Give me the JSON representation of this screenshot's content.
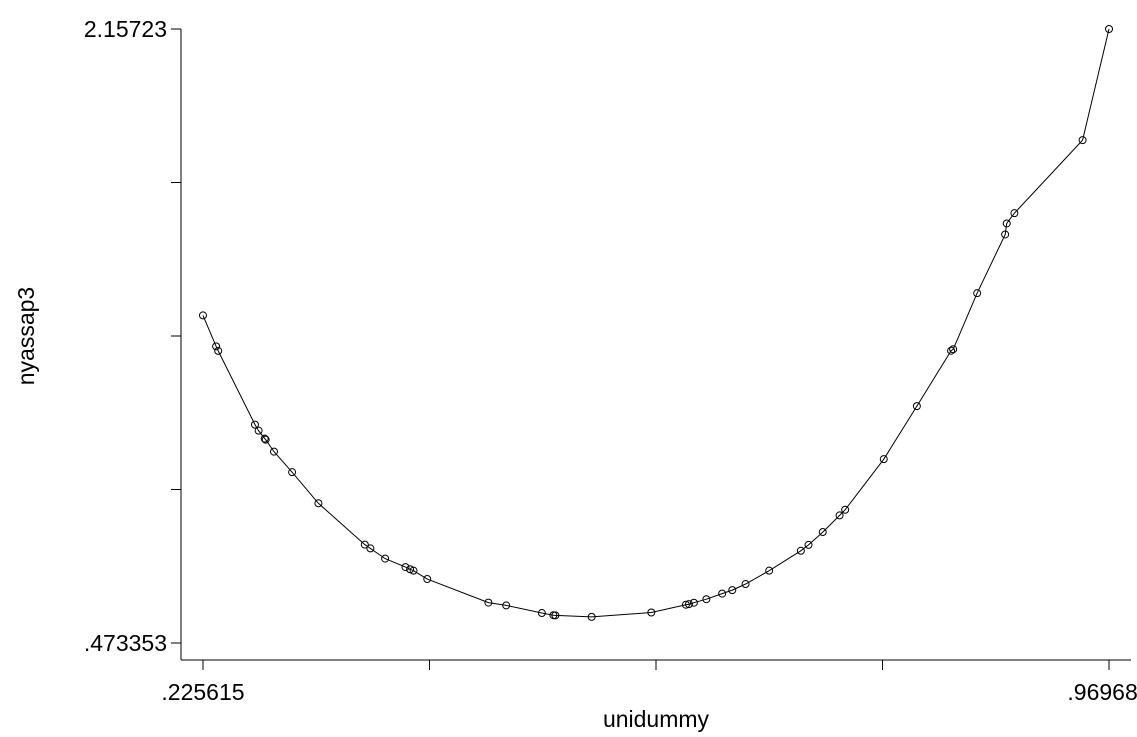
{
  "chart_data": {
    "type": "line",
    "xlabel": "unidummy",
    "ylabel": "nyassap3",
    "xlim": [
      0.225615,
      0.969687
    ],
    "ylim": [
      0.473353,
      2.15723
    ],
    "x_ticks": [
      0.225615,
      0.411633,
      0.597651,
      0.783669,
      0.969687
    ],
    "x_tick_labels": [
      ".225615",
      "",
      "",
      "",
      ".969687"
    ],
    "y_ticks": [
      0.473353,
      0.894322,
      1.315292,
      1.736261,
      2.15723
    ],
    "y_tick_labels": [
      ".473353",
      "",
      "",
      "",
      "2.15723"
    ],
    "grid": false,
    "legend": "none",
    "markers": "hollow-circle",
    "series": [
      {
        "x": [
          0.2256,
          0.2364,
          0.2381,
          0.2683,
          0.2713,
          0.2763,
          0.2771,
          0.2839,
          0.2988,
          0.3204,
          0.3585,
          0.3631,
          0.3752,
          0.3919,
          0.3957,
          0.3985,
          0.4098,
          0.46,
          0.4746,
          0.5039,
          0.5134,
          0.515,
          0.5448,
          0.5938,
          0.6222,
          0.6247,
          0.6288,
          0.639,
          0.652,
          0.6603,
          0.6712,
          0.6906,
          0.7166,
          0.7229,
          0.7346,
          0.7484,
          0.753,
          0.7847,
          0.8119,
          0.84,
          0.8417,
          0.8614,
          0.8844,
          0.8857,
          0.892,
          0.948,
          0.9697
        ],
        "y": [
          1.3717,
          1.287,
          1.2744,
          1.0722,
          1.0557,
          1.0338,
          1.031,
          0.9982,
          0.9419,
          0.8566,
          0.7432,
          0.7328,
          0.7049,
          0.6815,
          0.6756,
          0.6717,
          0.6487,
          0.5842,
          0.5764,
          0.5555,
          0.5496,
          0.5491,
          0.545,
          0.557,
          0.5783,
          0.5798,
          0.5838,
          0.5934,
          0.6089,
          0.6184,
          0.6351,
          0.6717,
          0.7263,
          0.7423,
          0.7776,
          0.8233,
          0.8388,
          0.9775,
          1.123,
          1.2749,
          1.2789,
          1.4328,
          1.5937,
          1.6239,
          1.6522,
          1.8525,
          2.1572
        ]
      }
    ]
  }
}
